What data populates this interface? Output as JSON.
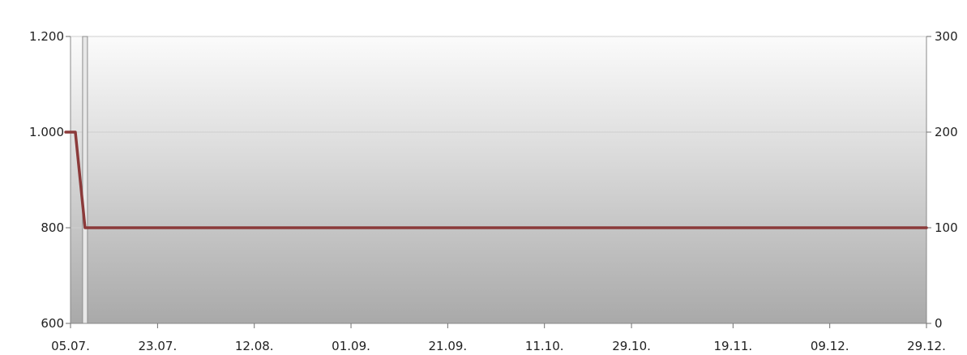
{
  "chart_data": {
    "type": "line",
    "title": "",
    "xlabel": "",
    "ylabel": "",
    "ylim": [
      600,
      1200
    ],
    "y2lim": [
      0,
      300
    ],
    "yticks": [
      "600",
      "800",
      "1.000",
      "1.200"
    ],
    "y2ticks": [
      "0",
      "100",
      "200",
      "300"
    ],
    "xticks": [
      "05.07.",
      "23.07.",
      "12.08.",
      "01.09.",
      "21.09.",
      "11.10.",
      "29.10.",
      "19.11.",
      "09.12.",
      "29.12."
    ],
    "grid": true,
    "series": [
      {
        "type": "line",
        "axis": "right",
        "color": "#8b3a3a",
        "x": [
          "04.07.",
          "06.07.",
          "08.07.",
          "29.12."
        ],
        "values": [
          200,
          200,
          100,
          100
        ]
      },
      {
        "type": "bar",
        "axis": "left",
        "color": "#e8e8e8",
        "x": [
          "08.07."
        ],
        "values": [
          1200
        ]
      }
    ]
  }
}
